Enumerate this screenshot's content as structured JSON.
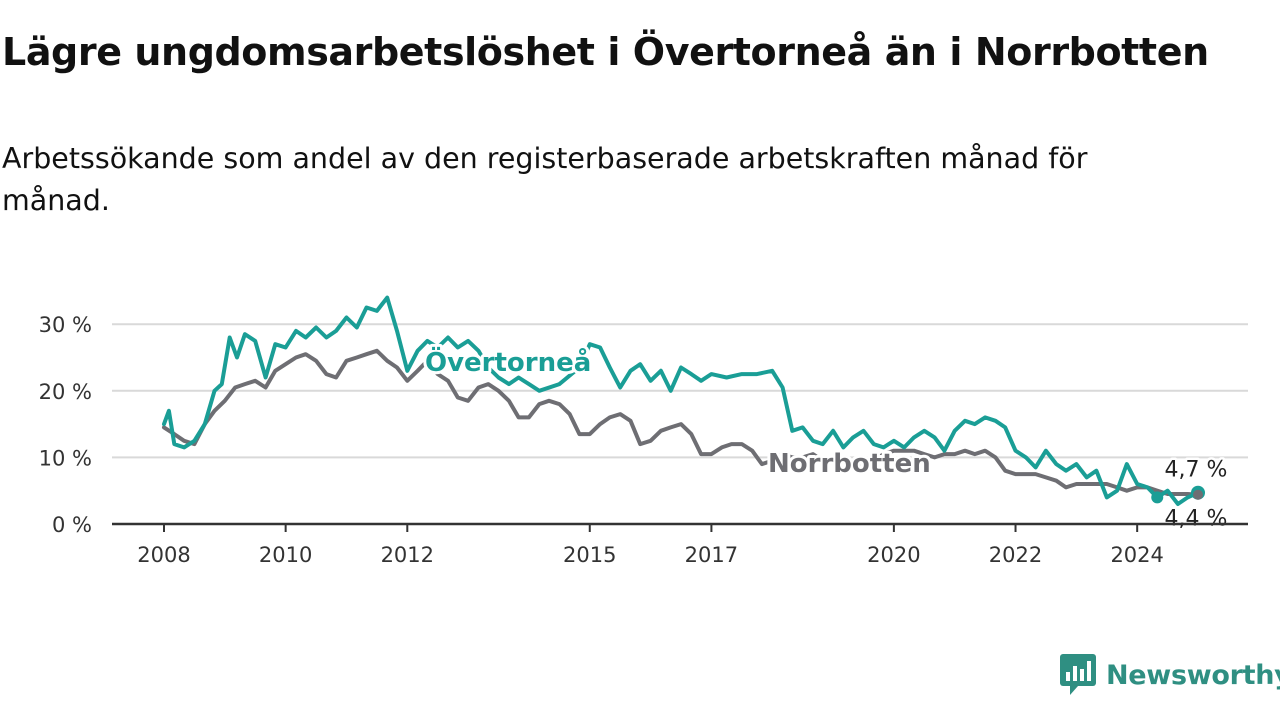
{
  "header": {
    "title": "Lägre ungdomsarbetslöshet i Övertorneå än i Norrbotten",
    "subtitle": "Arbetssökande som andel av den registerbaserade arbetskraften månad för månad."
  },
  "brand": {
    "name": "Newsworthy",
    "color": "#2f8f82"
  },
  "colors": {
    "overtornea": "#1a9e96",
    "norrbotten": "#6e6e73",
    "grid": "#d9d9d9",
    "axis": "#333333"
  },
  "chart_data": {
    "type": "line",
    "title": "Lägre ungdomsarbetslöshet i Övertorneå än i Norrbotten",
    "subtitle": "Arbetssökande som andel av den registerbaserade arbetskraften månad för månad.",
    "xlabel": "",
    "ylabel": "",
    "xlim": [
      2008.0,
      2025.0
    ],
    "ylim": [
      0,
      33
    ],
    "y_ticks": [
      0,
      10,
      20,
      30
    ],
    "y_tick_labels": [
      "0 %",
      "10 %",
      "20 %",
      "30 %"
    ],
    "x_ticks": [
      2008,
      2010,
      2012,
      2015,
      2017,
      2020,
      2022,
      2024
    ],
    "x_tick_labels": [
      "2008",
      "2010",
      "2012",
      "2015",
      "2017",
      "2020",
      "2022",
      "2024"
    ],
    "grid": true,
    "legend": "inline labels",
    "series": [
      {
        "name": "Övertorneå",
        "color": "#1a9e96",
        "end_label": "4,7 %",
        "points": [
          [
            2008.0,
            15.0
          ],
          [
            2008.08,
            17.0
          ],
          [
            2008.17,
            12.0
          ],
          [
            2008.33,
            11.5
          ],
          [
            2008.5,
            12.5
          ],
          [
            2008.67,
            15.0
          ],
          [
            2008.83,
            20.0
          ],
          [
            2008.95,
            21.0
          ],
          [
            2009.08,
            28.0
          ],
          [
            2009.2,
            25.0
          ],
          [
            2009.33,
            28.5
          ],
          [
            2009.5,
            27.5
          ],
          [
            2009.67,
            22.0
          ],
          [
            2009.83,
            27.0
          ],
          [
            2010.0,
            26.5
          ],
          [
            2010.17,
            29.0
          ],
          [
            2010.33,
            28.0
          ],
          [
            2010.5,
            29.5
          ],
          [
            2010.67,
            28.0
          ],
          [
            2010.83,
            29.0
          ],
          [
            2011.0,
            31.0
          ],
          [
            2011.17,
            29.5
          ],
          [
            2011.33,
            32.5
          ],
          [
            2011.5,
            32.0
          ],
          [
            2011.67,
            34.0
          ],
          [
            2011.83,
            29.0
          ],
          [
            2012.0,
            23.0
          ],
          [
            2012.17,
            26.0
          ],
          [
            2012.33,
            27.5
          ],
          [
            2012.5,
            26.5
          ],
          [
            2012.67,
            28.0
          ],
          [
            2012.83,
            26.5
          ],
          [
            2013.0,
            27.5
          ],
          [
            2013.17,
            26.0
          ],
          [
            2013.33,
            23.5
          ],
          [
            2013.5,
            22.0
          ],
          [
            2013.67,
            21.0
          ],
          [
            2013.83,
            22.0
          ],
          [
            2014.0,
            21.0
          ],
          [
            2014.17,
            20.0
          ],
          [
            2014.5,
            21.0
          ],
          [
            2014.83,
            23.5
          ],
          [
            2015.0,
            27.0
          ],
          [
            2015.17,
            26.5
          ],
          [
            2015.33,
            23.5
          ],
          [
            2015.5,
            20.5
          ],
          [
            2015.67,
            23.0
          ],
          [
            2015.83,
            24.0
          ],
          [
            2016.0,
            21.5
          ],
          [
            2016.17,
            23.0
          ],
          [
            2016.33,
            20.0
          ],
          [
            2016.5,
            23.5
          ],
          [
            2016.67,
            22.5
          ],
          [
            2016.83,
            21.5
          ],
          [
            2017.0,
            22.5
          ],
          [
            2017.25,
            22.0
          ],
          [
            2017.5,
            22.5
          ],
          [
            2017.75,
            22.5
          ],
          [
            2018.0,
            23.0
          ],
          [
            2018.17,
            20.5
          ],
          [
            2018.33,
            14.0
          ],
          [
            2018.5,
            14.5
          ],
          [
            2018.67,
            12.5
          ],
          [
            2018.83,
            12.0
          ],
          [
            2019.0,
            14.0
          ],
          [
            2019.17,
            11.5
          ],
          [
            2019.33,
            13.0
          ],
          [
            2019.5,
            14.0
          ],
          [
            2019.67,
            12.0
          ],
          [
            2019.83,
            11.5
          ],
          [
            2020.0,
            12.5
          ],
          [
            2020.17,
            11.5
          ],
          [
            2020.33,
            13.0
          ],
          [
            2020.5,
            14.0
          ],
          [
            2020.67,
            13.0
          ],
          [
            2020.83,
            11.0
          ],
          [
            2021.0,
            14.0
          ],
          [
            2021.17,
            15.5
          ],
          [
            2021.33,
            15.0
          ],
          [
            2021.5,
            16.0
          ],
          [
            2021.67,
            15.5
          ],
          [
            2021.83,
            14.5
          ],
          [
            2022.0,
            11.0
          ],
          [
            2022.17,
            10.0
          ],
          [
            2022.33,
            8.5
          ],
          [
            2022.5,
            11.0
          ],
          [
            2022.67,
            9.0
          ],
          [
            2022.83,
            8.0
          ],
          [
            2023.0,
            9.0
          ],
          [
            2023.17,
            7.0
          ],
          [
            2023.33,
            8.0
          ],
          [
            2023.5,
            4.0
          ],
          [
            2023.67,
            5.0
          ],
          [
            2023.83,
            9.0
          ],
          [
            2024.0,
            6.0
          ],
          [
            2024.17,
            5.5
          ],
          [
            2024.33,
            4.0
          ],
          [
            2024.5,
            5.0
          ],
          [
            2024.67,
            3.0
          ],
          [
            2024.83,
            4.0
          ],
          [
            2025.0,
            4.7
          ]
        ]
      },
      {
        "name": "Norrbotten",
        "color": "#6e6e73",
        "end_label": "4,4 %",
        "points": [
          [
            2008.0,
            14.5
          ],
          [
            2008.17,
            13.5
          ],
          [
            2008.33,
            12.5
          ],
          [
            2008.5,
            12.0
          ],
          [
            2008.67,
            15.0
          ],
          [
            2008.83,
            17.0
          ],
          [
            2009.0,
            18.5
          ],
          [
            2009.17,
            20.5
          ],
          [
            2009.33,
            21.0
          ],
          [
            2009.5,
            21.5
          ],
          [
            2009.67,
            20.5
          ],
          [
            2009.83,
            23.0
          ],
          [
            2010.0,
            24.0
          ],
          [
            2010.17,
            25.0
          ],
          [
            2010.33,
            25.5
          ],
          [
            2010.5,
            24.5
          ],
          [
            2010.67,
            22.5
          ],
          [
            2010.83,
            22.0
          ],
          [
            2011.0,
            24.5
          ],
          [
            2011.17,
            25.0
          ],
          [
            2011.33,
            25.5
          ],
          [
            2011.5,
            26.0
          ],
          [
            2011.67,
            24.5
          ],
          [
            2011.83,
            23.5
          ],
          [
            2012.0,
            21.5
          ],
          [
            2012.17,
            23.0
          ],
          [
            2012.33,
            24.5
          ],
          [
            2012.5,
            22.5
          ],
          [
            2012.67,
            21.5
          ],
          [
            2012.83,
            19.0
          ],
          [
            2013.0,
            18.5
          ],
          [
            2013.17,
            20.5
          ],
          [
            2013.33,
            21.0
          ],
          [
            2013.5,
            20.0
          ],
          [
            2013.67,
            18.5
          ],
          [
            2013.83,
            16.0
          ],
          [
            2014.0,
            16.0
          ],
          [
            2014.17,
            18.0
          ],
          [
            2014.33,
            18.5
          ],
          [
            2014.5,
            18.0
          ],
          [
            2014.67,
            16.5
          ],
          [
            2014.83,
            13.5
          ],
          [
            2015.0,
            13.5
          ],
          [
            2015.17,
            15.0
          ],
          [
            2015.33,
            16.0
          ],
          [
            2015.5,
            16.5
          ],
          [
            2015.67,
            15.5
          ],
          [
            2015.83,
            12.0
          ],
          [
            2016.0,
            12.5
          ],
          [
            2016.17,
            14.0
          ],
          [
            2016.33,
            14.5
          ],
          [
            2016.5,
            15.0
          ],
          [
            2016.67,
            13.5
          ],
          [
            2016.83,
            10.5
          ],
          [
            2017.0,
            10.5
          ],
          [
            2017.17,
            11.5
          ],
          [
            2017.33,
            12.0
          ],
          [
            2017.5,
            12.0
          ],
          [
            2017.67,
            11.0
          ],
          [
            2017.83,
            9.0
          ],
          [
            2018.0,
            9.5
          ],
          [
            2018.17,
            10.5
          ],
          [
            2018.33,
            10.0
          ],
          [
            2018.5,
            10.0
          ],
          [
            2018.67,
            10.5
          ],
          [
            2018.83,
            9.5
          ],
          [
            2019.0,
            10.0
          ],
          [
            2019.17,
            9.5
          ],
          [
            2019.33,
            9.0
          ],
          [
            2019.5,
            8.5
          ],
          [
            2019.67,
            9.5
          ],
          [
            2019.83,
            10.5
          ],
          [
            2020.0,
            11.0
          ],
          [
            2020.17,
            11.0
          ],
          [
            2020.33,
            11.0
          ],
          [
            2020.5,
            10.5
          ],
          [
            2020.67,
            10.0
          ],
          [
            2020.83,
            10.5
          ],
          [
            2021.0,
            10.5
          ],
          [
            2021.17,
            11.0
          ],
          [
            2021.33,
            10.5
          ],
          [
            2021.5,
            11.0
          ],
          [
            2021.67,
            10.0
          ],
          [
            2021.83,
            8.0
          ],
          [
            2022.0,
            7.5
          ],
          [
            2022.17,
            7.5
          ],
          [
            2022.33,
            7.5
          ],
          [
            2022.5,
            7.0
          ],
          [
            2022.67,
            6.5
          ],
          [
            2022.83,
            5.5
          ],
          [
            2023.0,
            6.0
          ],
          [
            2023.17,
            6.0
          ],
          [
            2023.33,
            6.0
          ],
          [
            2023.5,
            6.0
          ],
          [
            2023.67,
            5.5
          ],
          [
            2023.83,
            5.0
          ],
          [
            2024.0,
            5.5
          ],
          [
            2024.17,
            5.5
          ],
          [
            2024.33,
            5.0
          ],
          [
            2024.5,
            4.5
          ],
          [
            2024.67,
            4.5
          ],
          [
            2024.83,
            4.5
          ],
          [
            2025.0,
            4.4
          ]
        ]
      }
    ]
  }
}
